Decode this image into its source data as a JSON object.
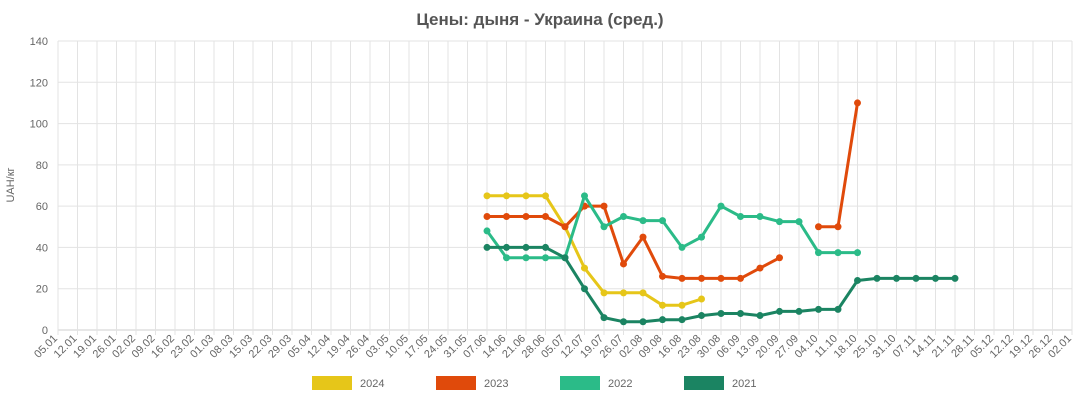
{
  "chart_data": {
    "type": "line",
    "title": "Цены: дыня - Украина (сред.)",
    "ylabel": "UAH/кг",
    "xlabel": "",
    "ylim": [
      0,
      140
    ],
    "yticks": [
      0,
      20,
      40,
      60,
      80,
      100,
      120,
      140
    ],
    "grid": true,
    "legend_position": "bottom",
    "categories": [
      "05.01",
      "12.01",
      "19.01",
      "26.01",
      "02.02",
      "09.02",
      "16.02",
      "23.02",
      "01.03",
      "08.03",
      "15.03",
      "22.03",
      "29.03",
      "05.04",
      "12.04",
      "19.04",
      "26.04",
      "03.05",
      "10.05",
      "17.05",
      "24.05",
      "31.05",
      "07.06",
      "14.06",
      "21.06",
      "28.06",
      "05.07",
      "12.07",
      "19.07",
      "26.07",
      "02.08",
      "09.08",
      "16.08",
      "23.08",
      "30.08",
      "06.09",
      "13.09",
      "20.09",
      "27.09",
      "04.10",
      "11.10",
      "18.10",
      "25.10",
      "31.10",
      "07.11",
      "14.11",
      "21.11",
      "28.11",
      "05.12",
      "12.12",
      "19.12",
      "26.12",
      "02.01"
    ],
    "series": [
      {
        "name": "2024",
        "color": "#e6c619",
        "values": [
          null,
          null,
          null,
          null,
          null,
          null,
          null,
          null,
          null,
          null,
          null,
          null,
          null,
          null,
          null,
          null,
          null,
          null,
          null,
          null,
          null,
          null,
          65,
          65,
          65,
          65,
          50,
          30,
          18,
          18,
          18,
          12,
          12,
          15,
          null,
          null,
          null,
          null,
          null,
          null,
          null,
          null,
          null,
          null,
          null,
          null,
          null,
          null,
          null,
          null,
          null,
          null,
          null
        ]
      },
      {
        "name": "2023",
        "color": "#e04a0b",
        "values": [
          null,
          null,
          null,
          null,
          null,
          null,
          null,
          null,
          null,
          null,
          null,
          null,
          null,
          null,
          null,
          null,
          null,
          null,
          null,
          null,
          null,
          null,
          55,
          55,
          55,
          55,
          50,
          60,
          60,
          32,
          45,
          26,
          25,
          25,
          25,
          25,
          30,
          35,
          null,
          50,
          50,
          110,
          null,
          null,
          null,
          null,
          null,
          null,
          null,
          null,
          null,
          null,
          null
        ]
      },
      {
        "name": "2022",
        "color": "#2bbb88",
        "values": [
          null,
          null,
          null,
          null,
          null,
          null,
          null,
          null,
          null,
          null,
          null,
          null,
          null,
          null,
          null,
          null,
          null,
          null,
          null,
          null,
          null,
          null,
          48,
          35,
          35,
          35,
          35,
          65,
          50,
          55,
          53,
          53,
          40,
          45,
          60,
          55,
          55,
          52.5,
          52.5,
          37.5,
          37.5,
          37.5,
          null,
          null,
          null,
          null,
          null,
          null,
          null,
          null,
          null,
          null,
          null
        ]
      },
      {
        "name": "2021",
        "color": "#1b8462",
        "values": [
          null,
          null,
          null,
          null,
          null,
          null,
          null,
          null,
          null,
          null,
          null,
          null,
          null,
          null,
          null,
          null,
          null,
          null,
          null,
          null,
          null,
          null,
          40,
          40,
          40,
          40,
          35,
          20,
          6,
          4,
          4,
          5,
          5,
          7,
          8,
          8,
          7,
          9,
          9,
          10,
          10,
          24,
          25,
          25,
          25,
          25,
          25,
          null,
          null,
          null,
          null,
          null,
          null
        ]
      }
    ]
  }
}
